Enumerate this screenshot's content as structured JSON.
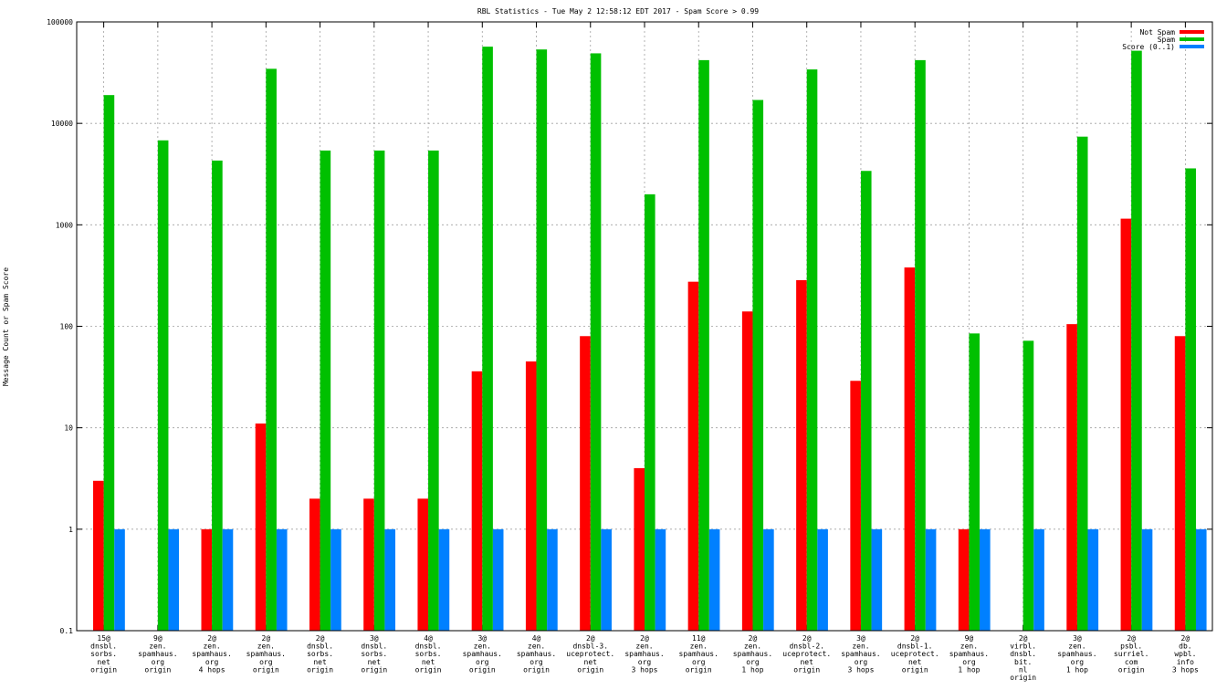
{
  "chart_data": {
    "type": "bar",
    "title": "RBL Statistics - Tue May  2 12:58:12 EDT 2017 - Spam Score > 0.99",
    "xlabel": "",
    "ylabel": "Message Count or Spam Score",
    "yscale": "log",
    "ylim": [
      0.1,
      100000
    ],
    "yticks": [
      "0.1",
      "1",
      "10",
      "100",
      "1000",
      "10000",
      "100000"
    ],
    "grid": true,
    "legend_position": "top-right",
    "categories": [
      [
        "15@",
        "dnsbl.",
        "sorbs.",
        "net",
        "origin"
      ],
      [
        "9@",
        "zen.",
        "spamhaus.",
        "org",
        "origin"
      ],
      [
        "2@",
        "zen.",
        "spamhaus.",
        "org",
        "4 hops"
      ],
      [
        "2@",
        "zen.",
        "spamhaus.",
        "org",
        "origin"
      ],
      [
        "2@",
        "dnsbl.",
        "sorbs.",
        "net",
        "origin"
      ],
      [
        "3@",
        "dnsbl.",
        "sorbs.",
        "net",
        "origin"
      ],
      [
        "4@",
        "dnsbl.",
        "sorbs.",
        "net",
        "origin"
      ],
      [
        "3@",
        "zen.",
        "spamhaus.",
        "org",
        "origin"
      ],
      [
        "4@",
        "zen.",
        "spamhaus.",
        "org",
        "origin"
      ],
      [
        "2@",
        "dnsbl-3.",
        "uceprotect.",
        "net",
        "origin"
      ],
      [
        "2@",
        "zen.",
        "spamhaus.",
        "org",
        "3 hops"
      ],
      [
        "11@",
        "zen.",
        "spamhaus.",
        "org",
        "origin"
      ],
      [
        "2@",
        "zen.",
        "spamhaus.",
        "org",
        "1 hop"
      ],
      [
        "2@",
        "dnsbl-2.",
        "uceprotect.",
        "net",
        "origin"
      ],
      [
        "3@",
        "zen.",
        "spamhaus.",
        "org",
        "3 hops"
      ],
      [
        "2@",
        "dnsbl-1.",
        "uceprotect.",
        "net",
        "origin"
      ],
      [
        "9@",
        "zen.",
        "spamhaus.",
        "org",
        "1 hop"
      ],
      [
        "2@",
        "virbl.",
        "dnsbl.",
        "bit.",
        "nl",
        "origin"
      ],
      [
        "3@",
        "zen.",
        "spamhaus.",
        "org",
        "1 hop"
      ],
      [
        "2@",
        "psbl.",
        "surriel.",
        "com",
        "origin"
      ],
      [
        "2@",
        "db.",
        "wpbl.",
        "info",
        "3 hops"
      ]
    ],
    "series": [
      {
        "name": "Not Spam",
        "color": "#ff0000",
        "values": [
          3,
          null,
          1,
          11,
          2,
          2,
          2,
          36,
          45,
          80,
          4,
          275,
          140,
          285,
          29,
          380,
          1,
          null,
          105,
          1150,
          80
        ]
      },
      {
        "name": "Spam",
        "color": "#00c000",
        "values": [
          19000,
          6800,
          4300,
          34500,
          5400,
          5400,
          5400,
          57000,
          53500,
          49000,
          2000,
          42000,
          17000,
          34000,
          3400,
          42000,
          85,
          72,
          7400,
          52000,
          3600
        ]
      },
      {
        "name": "Score (0..1)",
        "color": "#0080ff",
        "values": [
          1,
          1,
          1,
          1,
          1,
          1,
          1,
          1,
          1,
          1,
          1,
          1,
          1,
          1,
          1,
          1,
          1,
          1,
          1,
          1,
          1
        ]
      }
    ]
  }
}
